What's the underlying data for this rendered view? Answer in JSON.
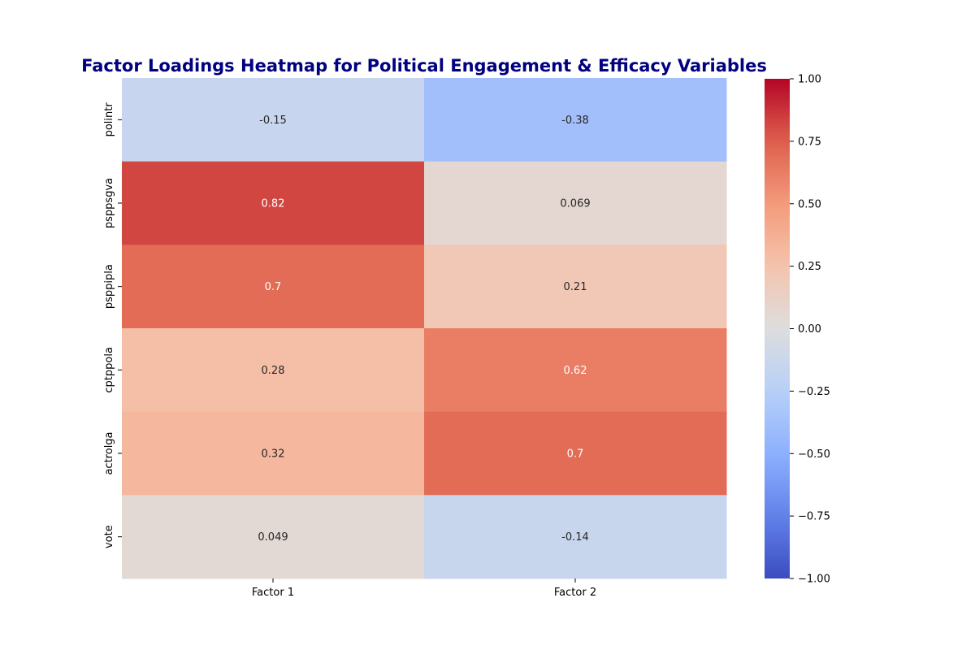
{
  "chart_data": {
    "type": "heatmap",
    "title": "Factor Loadings Heatmap for Political Engagement & Efficacy Variables",
    "title_color": "#000080",
    "rows": [
      "polintr",
      "psppsgva",
      "psppipla",
      "cptppola",
      "actrolga",
      "vote"
    ],
    "columns": [
      "Factor 1",
      "Factor 2"
    ],
    "values": [
      [
        -0.15,
        -0.38
      ],
      [
        0.82,
        0.069
      ],
      [
        0.7,
        0.21
      ],
      [
        0.28,
        0.62
      ],
      [
        0.32,
        0.7
      ],
      [
        0.049,
        -0.14
      ]
    ],
    "value_labels": [
      [
        "-0.15",
        "-0.38"
      ],
      [
        "0.82",
        "0.069"
      ],
      [
        "0.7",
        "0.21"
      ],
      [
        "0.28",
        "0.62"
      ],
      [
        "0.32",
        "0.7"
      ],
      [
        "0.049",
        "-0.14"
      ]
    ],
    "colormap": "coolwarm",
    "vmin": -1,
    "vmax": 1,
    "colorbar_ticks": [
      1.0,
      0.75,
      0.5,
      0.25,
      0.0,
      -0.25,
      -0.5,
      -0.75,
      -1.0
    ],
    "colorbar_tick_labels": [
      "1.00",
      "0.75",
      "0.50",
      "0.25",
      "0.00",
      "−0.25",
      "−0.50",
      "−0.75",
      "−1.00"
    ],
    "grid": false,
    "legend": "colorbar-right"
  }
}
